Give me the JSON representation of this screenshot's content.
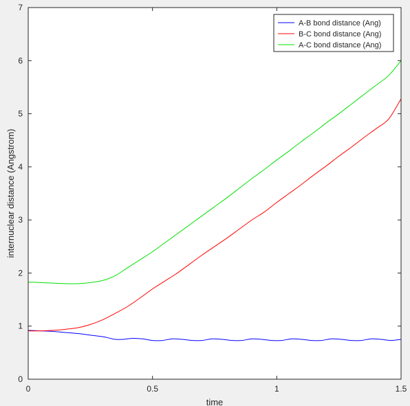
{
  "chart_data": {
    "type": "line",
    "title": "",
    "xlabel": "time",
    "ylabel": "internuclear distance (Angstrom)",
    "xlim": [
      0,
      1.5
    ],
    "ylim": [
      0,
      7
    ],
    "xticks": [
      0,
      0.5,
      1,
      1.5
    ],
    "xtick_labels": [
      "0",
      "0.5",
      "1",
      "1.5"
    ],
    "yticks": [
      0,
      1,
      2,
      3,
      4,
      5,
      6,
      7
    ],
    "ytick_labels": [
      "0",
      "1",
      "2",
      "3",
      "4",
      "5",
      "6",
      "7"
    ],
    "grid": false,
    "legend_position": "top-right",
    "series": [
      {
        "name": "A-B bond distance (Ang)",
        "color": "#0000ff",
        "x": [
          0,
          0.05,
          0.1,
          0.15,
          0.2,
          0.25,
          0.3,
          0.33,
          0.35,
          0.38,
          0.42,
          0.46,
          0.5,
          0.54,
          0.58,
          0.62,
          0.66,
          0.7,
          0.74,
          0.78,
          0.82,
          0.86,
          0.9,
          0.94,
          0.98,
          1.02,
          1.06,
          1.1,
          1.14,
          1.18,
          1.22,
          1.26,
          1.3,
          1.34,
          1.38,
          1.42,
          1.46,
          1.5
        ],
        "y": [
          0.92,
          0.91,
          0.9,
          0.88,
          0.86,
          0.83,
          0.8,
          0.77,
          0.75,
          0.75,
          0.77,
          0.76,
          0.73,
          0.73,
          0.76,
          0.75,
          0.73,
          0.73,
          0.76,
          0.75,
          0.73,
          0.73,
          0.76,
          0.75,
          0.73,
          0.73,
          0.76,
          0.75,
          0.73,
          0.73,
          0.76,
          0.75,
          0.73,
          0.73,
          0.76,
          0.75,
          0.73,
          0.75
        ]
      },
      {
        "name": "B-C bond distance (Ang)",
        "color": "#ff0000",
        "x": [
          0,
          0.05,
          0.1,
          0.15,
          0.2,
          0.25,
          0.3,
          0.35,
          0.4,
          0.45,
          0.5,
          0.55,
          0.6,
          0.65,
          0.7,
          0.75,
          0.8,
          0.85,
          0.9,
          0.95,
          1.0,
          1.05,
          1.1,
          1.15,
          1.2,
          1.25,
          1.3,
          1.35,
          1.4,
          1.45,
          1.5
        ],
        "y": [
          0.91,
          0.91,
          0.92,
          0.94,
          0.97,
          1.03,
          1.12,
          1.24,
          1.37,
          1.53,
          1.7,
          1.85,
          2.0,
          2.17,
          2.34,
          2.5,
          2.66,
          2.83,
          3.0,
          3.15,
          3.33,
          3.5,
          3.67,
          3.85,
          4.02,
          4.2,
          4.37,
          4.55,
          4.72,
          4.9,
          5.28
        ]
      },
      {
        "name": "A-C bond distance (Ang)",
        "color": "#00e000",
        "x": [
          0,
          0.05,
          0.1,
          0.15,
          0.2,
          0.25,
          0.3,
          0.35,
          0.4,
          0.45,
          0.5,
          0.55,
          0.6,
          0.65,
          0.7,
          0.75,
          0.8,
          0.85,
          0.9,
          0.95,
          1.0,
          1.05,
          1.1,
          1.15,
          1.2,
          1.25,
          1.3,
          1.35,
          1.4,
          1.45,
          1.5
        ],
        "y": [
          1.83,
          1.82,
          1.81,
          1.8,
          1.8,
          1.82,
          1.86,
          1.95,
          2.1,
          2.25,
          2.4,
          2.57,
          2.74,
          2.91,
          3.08,
          3.25,
          3.42,
          3.6,
          3.78,
          3.95,
          4.13,
          4.3,
          4.48,
          4.65,
          4.83,
          5.0,
          5.18,
          5.36,
          5.54,
          5.72,
          6.0
        ]
      }
    ]
  }
}
